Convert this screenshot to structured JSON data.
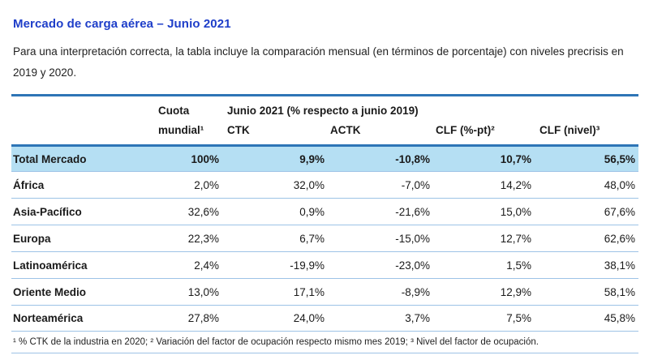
{
  "header": {
    "title": "Mercado de carga aérea – Junio 2021",
    "intro": "Para una interpretación correcta, la tabla incluye la comparación mensual (en términos de porcentaje) con niveles precrisis en 2019 y 2020."
  },
  "table": {
    "share_header_line1": "Cuota",
    "share_header_line2": "mundial¹",
    "group_header": "Junio 2021 (% respecto a junio 2019)",
    "columns": [
      "CTK",
      "ACTK",
      "CLF (%-pt)²",
      "CLF (nivel)³"
    ],
    "rows": [
      {
        "name": "Total Mercado",
        "values": [
          "100%",
          "9,9%",
          "-10,8%",
          "10,7%",
          "56,5%"
        ]
      },
      {
        "name": "África",
        "values": [
          "2,0%",
          "32,0%",
          "-7,0%",
          "14,2%",
          "48,0%"
        ]
      },
      {
        "name": "Asia-Pacífico",
        "values": [
          "32,6%",
          "0,9%",
          "-21,6%",
          "15,0%",
          "67,6%"
        ]
      },
      {
        "name": "Europa",
        "values": [
          "22,3%",
          "6,7%",
          "-15,0%",
          "12,7%",
          "62,6%"
        ]
      },
      {
        "name": "Latinoamérica",
        "values": [
          "2,4%",
          "-19,9%",
          "-23,0%",
          "1,5%",
          "38,1%"
        ]
      },
      {
        "name": "Oriente Medio",
        "values": [
          "13,0%",
          "17,1%",
          "-8,9%",
          "12,9%",
          "58,1%"
        ]
      },
      {
        "name": "Norteamérica",
        "values": [
          "27,8%",
          "24,0%",
          "3,7%",
          "7,5%",
          "45,8%"
        ]
      }
    ]
  },
  "footnote": "¹ % CTK de la industria en 2020; ² Variación del factor de ocupación respecto mismo mes 2019; ³ Nivel del factor de ocupación.",
  "colors": {
    "title_blue": "#1e3ec9",
    "table_border_blue": "#2e75b6",
    "row_separator_blue": "#9dc3e6",
    "highlight_row_bg": "#b5dff3"
  }
}
